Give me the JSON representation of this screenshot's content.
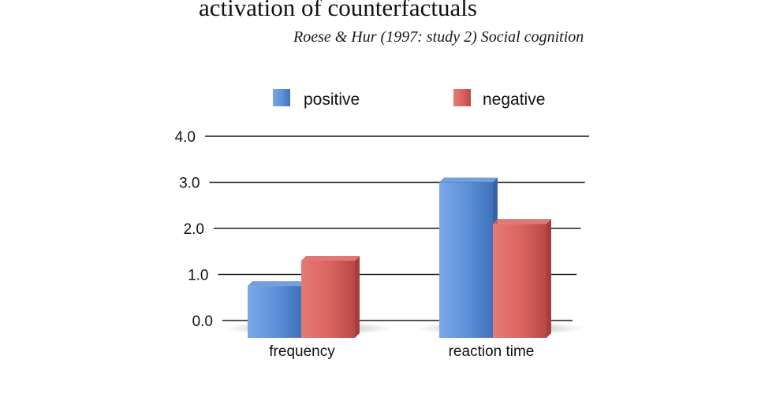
{
  "slide": {
    "title": "activation of counterfactuals",
    "citation": "Roese & Hur (1997: study 2) Social cognition"
  },
  "colors": {
    "positive": "#5b8fd6",
    "negative": "#d9625e"
  },
  "chart_data": {
    "type": "bar",
    "title": "",
    "xlabel": "",
    "ylabel": "",
    "categories": [
      "frequency",
      "reaction time"
    ],
    "series": [
      {
        "name": "positive",
        "values": [
          0.75,
          3.0
        ]
      },
      {
        "name": "negative",
        "values": [
          1.3,
          2.1
        ]
      }
    ],
    "yticks": [
      "0.0",
      "1.0",
      "2.0",
      "3.0",
      "4.0"
    ],
    "ylim": [
      0,
      4
    ],
    "grid": true,
    "legend": "top"
  }
}
